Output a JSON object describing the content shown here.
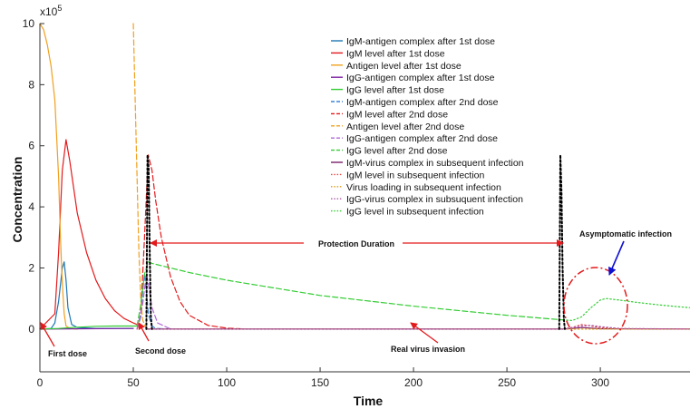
{
  "chart_data": {
    "type": "line",
    "xlabel": "Time",
    "ylabel": "Concentration",
    "y_multiplier": "x10",
    "y_multiplier_exp": "5",
    "xlim": [
      0,
      348
    ],
    "ylim": [
      -1.4,
      10
    ],
    "xticks": [
      0,
      50,
      100,
      150,
      200,
      250,
      300
    ],
    "yticks": [
      0,
      2,
      4,
      6,
      8,
      10
    ],
    "grid": false,
    "legend_position": "top-center",
    "series": [
      {
        "name": "IgM-antigen complex after 1st dose",
        "color": "#1f77b4",
        "dash": "solid",
        "x": [
          0,
          6,
          8,
          10,
          12,
          13,
          14,
          15,
          17,
          20,
          30,
          50
        ],
        "y": [
          0,
          0.02,
          0.2,
          0.9,
          2.0,
          2.2,
          1.6,
          0.7,
          0.15,
          0.05,
          0.02,
          0.02
        ]
      },
      {
        "name": "IgM level after 1st dose",
        "color": "#e31a1c",
        "dash": "solid",
        "x": [
          0,
          8,
          10,
          12,
          14,
          16,
          20,
          25,
          30,
          35,
          40,
          45,
          50,
          52
        ],
        "y": [
          0,
          0.5,
          2.5,
          5.2,
          6.2,
          5.5,
          3.8,
          2.5,
          1.6,
          1.0,
          0.6,
          0.35,
          0.2,
          0.15
        ]
      },
      {
        "name": "Antigen level after 1st dose",
        "color": "#f0a020",
        "dash": "solid",
        "x": [
          0,
          2,
          4,
          6,
          8,
          10,
          11,
          12,
          13,
          14,
          16,
          20
        ],
        "y": [
          10,
          9.8,
          9.3,
          8.6,
          7.5,
          5.0,
          3.0,
          1.5,
          0.5,
          0.1,
          0.02,
          0
        ]
      },
      {
        "name": "IgG-antigen complex after 1st dose",
        "color": "#7b1fa2",
        "dash": "solid",
        "x": [
          0,
          50
        ],
        "y": [
          0,
          0.02
        ]
      },
      {
        "name": "IgG level after 1st dose",
        "color": "#33cc33",
        "dash": "solid",
        "x": [
          0,
          10,
          20,
          30,
          40,
          50,
          52
        ],
        "y": [
          0,
          0.02,
          0.06,
          0.09,
          0.1,
          0.1,
          0.1
        ]
      },
      {
        "name": "IgM-antigen complex after 2nd dose",
        "color": "#3a86d8",
        "dash": "dashed",
        "x": [
          52,
          54,
          55,
          56,
          57,
          58,
          60,
          62,
          70
        ],
        "y": [
          0,
          0.4,
          1.2,
          1.8,
          1.3,
          0.5,
          0.1,
          0.02,
          0
        ]
      },
      {
        "name": "IgM level after 2nd dose",
        "color": "#e31a1c",
        "dash": "dashed",
        "x": [
          52,
          54,
          56,
          58,
          60,
          62,
          65,
          70,
          75,
          80,
          90,
          100,
          110
        ],
        "y": [
          0,
          0.5,
          3.0,
          5.7,
          5.2,
          4.2,
          3.0,
          1.7,
          0.9,
          0.45,
          0.12,
          0.03,
          0
        ]
      },
      {
        "name": "Antigen level after 2nd dose",
        "color": "#f0a020",
        "dash": "dashed",
        "x": [
          50,
          51,
          52,
          53,
          54,
          55,
          57
        ],
        "y": [
          10,
          7.5,
          5.0,
          2.5,
          1.0,
          0.3,
          0
        ]
      },
      {
        "name": "IgG-antigen complex after 2nd dose",
        "color": "#b06ad8",
        "dash": "dashed",
        "x": [
          52,
          55,
          57,
          58,
          60,
          63,
          70
        ],
        "y": [
          0,
          0.8,
          1.8,
          1.5,
          0.7,
          0.2,
          0
        ]
      },
      {
        "name": "IgG level after 2nd dose",
        "color": "#33cc33",
        "dash": "dashed",
        "x": [
          52,
          54,
          56,
          58,
          60,
          70,
          80,
          100,
          120,
          150,
          200,
          250,
          280
        ],
        "y": [
          0.1,
          0.8,
          1.8,
          2.2,
          2.15,
          2.0,
          1.85,
          1.6,
          1.4,
          1.1,
          0.75,
          0.45,
          0.3
        ]
      },
      {
        "name": "IgM-virus complex in subsequent infection",
        "color": "#7b1f6a",
        "dash": "solid",
        "x": [
          57,
          280,
          285,
          290,
          295,
          300,
          348
        ],
        "y": [
          0,
          0,
          0.02,
          0.05,
          0.03,
          0.01,
          0
        ]
      },
      {
        "name": "IgM level in subsequent infection",
        "color": "#e34a4a",
        "dash": "dotted",
        "x": [
          57,
          280,
          285,
          290,
          295,
          300,
          310,
          348
        ],
        "y": [
          0,
          0,
          0.05,
          0.15,
          0.1,
          0.05,
          0.01,
          0
        ]
      },
      {
        "name": "Virus loading in subsequent infection",
        "color": "#d99a1a",
        "dash": "dotted",
        "x": [
          57,
          348
        ],
        "y": [
          0,
          0
        ]
      },
      {
        "name": "IgG-virus complex in subsuquent infection",
        "color": "#b05aa8",
        "dash": "dotted",
        "x": [
          57,
          280,
          285,
          290,
          295,
          300,
          310,
          348
        ],
        "y": [
          0,
          0,
          0.05,
          0.1,
          0.12,
          0.08,
          0.02,
          0
        ]
      },
      {
        "name": "IgG level in subsequent infection",
        "color": "#33cc33",
        "dash": "dotted",
        "x": [
          280,
          285,
          290,
          295,
          300,
          303,
          310,
          320,
          330,
          340,
          348
        ],
        "y": [
          0.3,
          0.28,
          0.4,
          0.7,
          0.95,
          1.0,
          0.95,
          0.87,
          0.8,
          0.74,
          0.7
        ]
      },
      {
        "name": "",
        "color": "#000000",
        "dash": "dotted",
        "x": [
          57,
          57.6,
          58.2,
          58.8,
          59.4,
          60
        ],
        "y": [
          0,
          5.7,
          5.3,
          2.5,
          0.4,
          0
        ]
      },
      {
        "name": "",
        "color": "#000000",
        "dash": "dotted",
        "x": [
          278,
          278.6,
          279.2,
          279.8,
          280.5,
          281
        ],
        "y": [
          0,
          5.7,
          4.5,
          2.0,
          0.3,
          0
        ]
      }
    ],
    "annotations": [
      {
        "text": "First dose",
        "x": 0
      },
      {
        "text": "Second dose",
        "x": 52
      },
      {
        "text": "Real virus invasion",
        "x": 199
      },
      {
        "text": "Protection Duration"
      },
      {
        "text": "Asymptomatic infection"
      }
    ]
  }
}
